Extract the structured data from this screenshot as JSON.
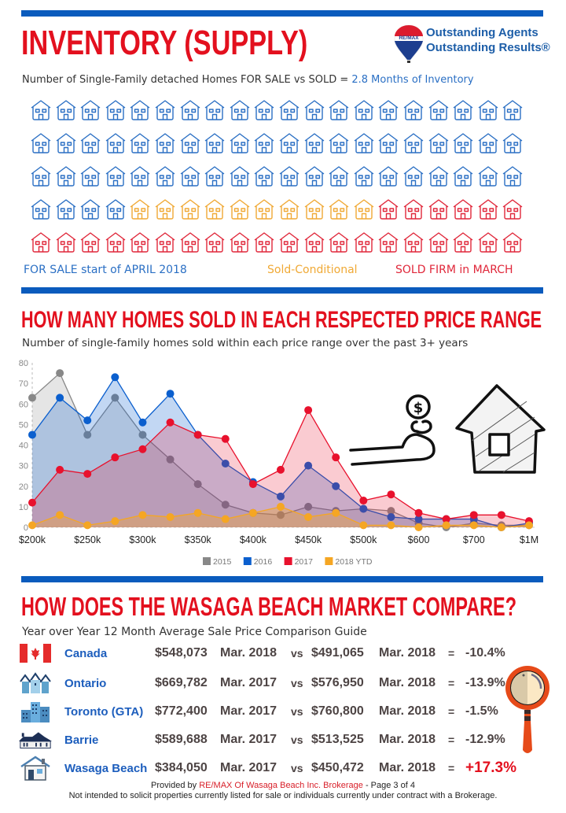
{
  "inventory": {
    "title": "INVENTORY (SUPPLY)",
    "subtitle_prefix": "Number of Single-Family detached Homes FOR SALE vs SOLD = ",
    "subtitle_highlight": "2.8 Months of Inventory",
    "logo": {
      "brand": "RE/MAX",
      "line1": "Outstanding Agents",
      "line2": "Outstanding Results®"
    },
    "house_icon": "house-outline-icon",
    "grid": {
      "per_row": 20,
      "rows": 5,
      "for_sale_count": 64,
      "sold_conditional_count": 10,
      "sold_firm_count": 26
    },
    "legend": [
      {
        "label": "FOR SALE start of APRIL 2018",
        "color": "#2a6fc4"
      },
      {
        "label": "Sold-Conditional",
        "color": "#f0a935"
      },
      {
        "label": "SOLD FIRM in MARCH",
        "color": "#e0273a"
      }
    ]
  },
  "price_range": {
    "title": "HOW MANY HOMES SOLD IN EACH RESPECTED PRICE RANGE",
    "subtitle": "Number of single-family homes sold within each price range over the past 3+ years"
  },
  "chart_data": {
    "type": "area",
    "title": "HOW MANY HOMES SOLD IN EACH RESPECTED PRICE RANGE",
    "subtitle": "Number of single-family homes sold within each price range over the past 3+ years",
    "xlabel": "",
    "ylabel": "",
    "ylim": [
      0,
      80
    ],
    "yticks": [
      0,
      10,
      20,
      30,
      40,
      50,
      60,
      70,
      80
    ],
    "x_tick_labels": [
      {
        "index": 0,
        "label": "$200k"
      },
      {
        "index": 2,
        "label": "$250k"
      },
      {
        "index": 4,
        "label": "$300k"
      },
      {
        "index": 6,
        "label": "$350k"
      },
      {
        "index": 8,
        "label": "$400k"
      },
      {
        "index": 10,
        "label": "$450k"
      },
      {
        "index": 12,
        "label": "$500k"
      },
      {
        "index": 14,
        "label": "$600"
      },
      {
        "index": 16,
        "label": "$700"
      },
      {
        "index": 18,
        "label": "$1M"
      }
    ],
    "point_count": 19,
    "grid": false,
    "legend_position": "bottom",
    "series": [
      {
        "name": "2015",
        "color": "#888888",
        "values": [
          63,
          75,
          45,
          63,
          45,
          33,
          21,
          11,
          7,
          6,
          10,
          8,
          9,
          8,
          2,
          0,
          2,
          1,
          1
        ]
      },
      {
        "name": "2016",
        "color": "#0b5fce",
        "values": [
          45,
          63,
          52,
          73,
          51,
          65,
          45,
          31,
          22,
          15,
          30,
          20,
          9,
          5,
          4,
          4,
          4,
          0,
          2
        ]
      },
      {
        "name": "2017",
        "color": "#e8112d",
        "values": [
          12,
          28,
          26,
          34,
          38,
          51,
          45,
          43,
          21,
          28,
          57,
          34,
          13,
          16,
          7,
          4,
          6,
          6,
          3
        ]
      },
      {
        "name": "2018 YTD",
        "color": "#f5a623",
        "values": [
          1,
          6,
          1,
          3,
          6,
          5,
          7,
          4,
          7,
          10,
          5,
          7,
          1,
          1,
          0,
          1,
          1,
          0,
          1
        ]
      }
    ]
  },
  "illustration": {
    "hand_coin_icon": "hand-holding-coin-icon",
    "house_sketch_icon": "house-sketch-icon"
  },
  "compare": {
    "title": "HOW DOES THE WASAGA BEACH MARKET COMPARE?",
    "subtitle": "Year over Year 12 Month Average Sale Price Comparison Guide",
    "vs_label": "vs",
    "eq_label": "=",
    "rows": [
      {
        "icon": "canada-flag-icon",
        "name": "Canada",
        "price1": "$548,073",
        "date1": "Mar. 2018",
        "price2": "$491,065",
        "date2": "Mar. 2018",
        "change": "-10.4%"
      },
      {
        "icon": "ontario-houses-icon",
        "name": "Ontario",
        "price1": "$669,782",
        "date1": "Mar. 2017",
        "price2": "$576,950",
        "date2": "Mar. 2018",
        "change": "-13.9%"
      },
      {
        "icon": "toronto-buildings-icon",
        "name": "Toronto (GTA)",
        "price1": "$772,400",
        "date1": "Mar. 2017",
        "price2": "$760,800",
        "date2": "Mar. 2018",
        "change": "-1.5%"
      },
      {
        "icon": "barrie-building-icon",
        "name": "Barrie",
        "price1": "$589,688",
        "date1": "Mar. 2017",
        "price2": "$513,525",
        "date2": "Mar. 2018",
        "change": "-12.9%"
      },
      {
        "icon": "wasaga-house-icon",
        "name": "Wasaga Beach",
        "price1": "$384,050",
        "date1": "Mar. 2017",
        "price2": "$450,472",
        "date2": "Mar. 2018",
        "change": "+17.3%"
      }
    ],
    "magnifier_icon": "magnifying-glass-icon"
  },
  "footer": {
    "provided_prefix": "Provided by ",
    "brokerage": "RE/MAX Of Wasaga Beach Inc. Brokerage",
    "page_suffix": " - Page 3 of 4",
    "disclaimer": "Not intended to solicit properties currently listed for sale or individuals currently under contract with a Brokerage."
  },
  "colors": {
    "accent_bar": "#0a5bbd",
    "title_red": "#e3101e",
    "for_sale_blue": "#2a6fc4",
    "conditional_yellow": "#f0a935",
    "sold_red": "#e0273a",
    "positive_change": "#e3101e"
  }
}
